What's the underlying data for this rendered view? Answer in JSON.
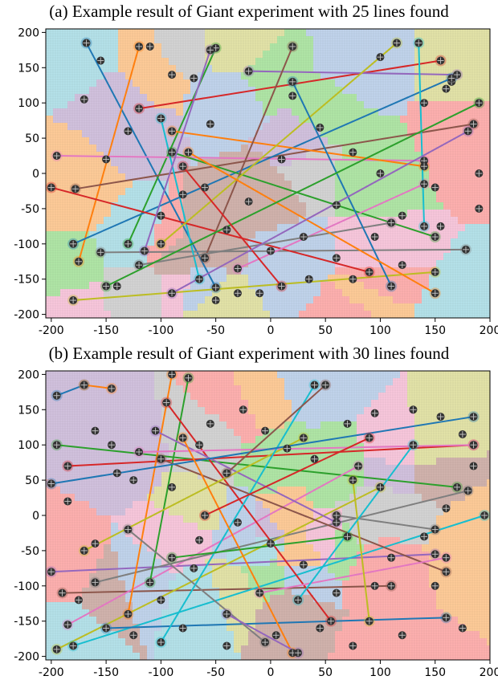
{
  "figure": {
    "panels": [
      {
        "title": "(a) Example result of Giant experiment with 25 lines found"
      },
      {
        "title": "(b) Example result of Giant experiment with 30 lines found"
      }
    ]
  },
  "colors": {
    "lines": [
      "#1f77b4",
      "#ff7f0e",
      "#2ca02c",
      "#d62728",
      "#9467bd",
      "#8c564b",
      "#e377c2",
      "#7f7f7f",
      "#bcbd22",
      "#17becf"
    ],
    "regions": [
      "#aec7e8",
      "#ffbb78",
      "#98df8a",
      "#ff9896",
      "#c5b0d5",
      "#c49c94",
      "#f7b6d2",
      "#c7c7c7",
      "#dbdb8d",
      "#9edae5"
    ],
    "point": "#333333"
  },
  "chart_data": [
    {
      "type": "scatter",
      "title": "(a) Example result of Giant experiment with 25 lines found",
      "xlim": [
        -205,
        200
      ],
      "ylim": [
        -205,
        205
      ],
      "xticks": [
        -200,
        -150,
        -100,
        -50,
        0,
        50,
        100,
        150,
        200
      ],
      "yticks": [
        200,
        150,
        100,
        50,
        0,
        -50,
        -100,
        -150,
        -200
      ],
      "grid": true,
      "lines": [
        [
          [
            -168,
            185
          ],
          [
            -50,
            -162
          ]
        ],
        [
          [
            -120,
            180
          ],
          [
            -175,
            -125
          ]
        ],
        [
          [
            -50,
            178
          ],
          [
            -130,
            -100
          ]
        ],
        [
          [
            -120,
            92
          ],
          [
            155,
            160
          ]
        ],
        [
          [
            -20,
            145
          ],
          [
            170,
            140
          ]
        ],
        [
          [
            -178,
            -22
          ],
          [
            185,
            70
          ]
        ],
        [
          [
            -195,
            25
          ],
          [
            140,
            18
          ]
        ],
        [
          [
            -155,
            -112
          ],
          [
            178,
            -108
          ]
        ],
        [
          [
            -180,
            -180
          ],
          [
            150,
            -140
          ]
        ],
        [
          [
            -100,
            78
          ],
          [
            -65,
            -150
          ]
        ],
        [
          [
            -180,
            -100
          ],
          [
            165,
            135
          ]
        ],
        [
          [
            -90,
            60
          ],
          [
            140,
            10
          ]
        ],
        [
          [
            -90,
            30
          ],
          [
            150,
            -90
          ]
        ],
        [
          [
            -200,
            -20
          ],
          [
            90,
            -140
          ]
        ],
        [
          [
            -115,
            -110
          ],
          [
            -55,
            175
          ]
        ],
        [
          [
            -60,
            -120
          ],
          [
            20,
            180
          ]
        ],
        [
          [
            -30,
            -135
          ],
          [
            140,
            -15
          ]
        ],
        [
          [
            -120,
            -130
          ],
          [
            110,
            -70
          ]
        ],
        [
          [
            115,
            185
          ],
          [
            -100,
            -100
          ]
        ],
        [
          [
            135,
            185
          ],
          [
            140,
            -75
          ]
        ],
        [
          [
            20,
            130
          ],
          [
            110,
            -160
          ]
        ],
        [
          [
            -75,
            30
          ],
          [
            150,
            -170
          ]
        ],
        [
          [
            -150,
            -160
          ],
          [
            190,
            100
          ]
        ],
        [
          [
            10,
            -160
          ],
          [
            -80,
            10
          ]
        ],
        [
          [
            -90,
            -170
          ],
          [
            180,
            60
          ]
        ]
      ],
      "points": [
        [
          -110,
          180
        ],
        [
          -155,
          160
        ],
        [
          -90,
          140
        ],
        [
          -70,
          135
        ],
        [
          -55,
          70
        ],
        [
          -50,
          -180
        ],
        [
          -30,
          -170
        ],
        [
          35,
          -150
        ],
        [
          60,
          -120
        ],
        [
          75,
          -150
        ],
        [
          100,
          165
        ],
        [
          140,
          100
        ],
        [
          160,
          120
        ],
        [
          165,
          130
        ],
        [
          190,
          0
        ],
        [
          190,
          -50
        ],
        [
          150,
          -20
        ],
        [
          120,
          -60
        ],
        [
          95,
          -90
        ],
        [
          60,
          -45
        ],
        [
          30,
          -90
        ],
        [
          0,
          -110
        ],
        [
          -40,
          -80
        ],
        [
          -60,
          -20
        ],
        [
          -150,
          20
        ],
        [
          -170,
          105
        ],
        [
          -140,
          -160
        ],
        [
          -20,
          -40
        ],
        [
          10,
          20
        ],
        [
          45,
          65
        ],
        [
          75,
          30
        ],
        [
          100,
          0
        ],
        [
          -80,
          -30
        ],
        [
          -100,
          -60
        ],
        [
          20,
          110
        ],
        [
          -130,
          60
        ],
        [
          120,
          -130
        ],
        [
          155,
          -75
        ],
        [
          -10,
          -170
        ]
      ]
    },
    {
      "type": "scatter",
      "title": "(b) Example result of Giant experiment with 30 lines found",
      "xlim": [
        -205,
        200
      ],
      "ylim": [
        -205,
        205
      ],
      "xticks": [
        -200,
        -150,
        -100,
        -50,
        0,
        50,
        100,
        150,
        200
      ],
      "yticks": [
        200,
        150,
        100,
        50,
        0,
        -50,
        -100,
        -150,
        -200
      ],
      "grid": true,
      "lines": [
        [
          [
            -195,
            170
          ],
          [
            -170,
            185
          ]
        ],
        [
          [
            -170,
            185
          ],
          [
            -145,
            180
          ]
        ],
        [
          [
            -195,
            100
          ],
          [
            170,
            40
          ]
        ],
        [
          [
            -185,
            70
          ],
          [
            185,
            100
          ]
        ],
        [
          [
            -200,
            -80
          ],
          [
            150,
            -55
          ]
        ],
        [
          [
            -190,
            -110
          ],
          [
            110,
            -100
          ]
        ],
        [
          [
            -185,
            -155
          ],
          [
            80,
            70
          ]
        ],
        [
          [
            -160,
            -95
          ],
          [
            180,
            35
          ]
        ],
        [
          [
            -195,
            -190
          ],
          [
            100,
            40
          ]
        ],
        [
          [
            -180,
            -185
          ],
          [
            195,
            0
          ]
        ],
        [
          [
            -150,
            -160
          ],
          [
            160,
            -145
          ]
        ],
        [
          [
            -130,
            -140
          ],
          [
            -90,
            200
          ]
        ],
        [
          [
            -110,
            -95
          ],
          [
            -75,
            195
          ]
        ],
        [
          [
            -95,
            160
          ],
          [
            55,
            -150
          ]
        ],
        [
          [
            -105,
            120
          ],
          [
            60,
            -10
          ]
        ],
        [
          [
            -100,
            80
          ],
          [
            160,
            -80
          ]
        ],
        [
          [
            -120,
            90
          ],
          [
            185,
            100
          ]
        ],
        [
          [
            -130,
            -20
          ],
          [
            -5,
            -180
          ]
        ],
        [
          [
            -170,
            -50
          ],
          [
            30,
            110
          ]
        ],
        [
          [
            -100,
            -180
          ],
          [
            40,
            185
          ]
        ],
        [
          [
            -200,
            45
          ],
          [
            185,
            140
          ]
        ],
        [
          [
            -80,
            110
          ],
          [
            20,
            -195
          ]
        ],
        [
          [
            -90,
            -60
          ],
          [
            70,
            -30
          ]
        ],
        [
          [
            -60,
            0
          ],
          [
            90,
            110
          ]
        ],
        [
          [
            -40,
            -140
          ],
          [
            25,
            -195
          ]
        ],
        [
          [
            -40,
            60
          ],
          [
            50,
            185
          ]
        ],
        [
          [
            -10,
            -110
          ],
          [
            160,
            -60
          ]
        ],
        [
          [
            60,
            0
          ],
          [
            150,
            -20
          ]
        ],
        [
          [
            90,
            -150
          ],
          [
            75,
            50
          ]
        ],
        [
          [
            25,
            -120
          ],
          [
            130,
            100
          ]
        ]
      ],
      "points": [
        [
          -160,
          120
        ],
        [
          -145,
          100
        ],
        [
          -140,
          60
        ],
        [
          -125,
          50
        ],
        [
          -90,
          40
        ],
        [
          -65,
          100
        ],
        [
          -55,
          130
        ],
        [
          -25,
          150
        ],
        [
          -5,
          120
        ],
        [
          15,
          95
        ],
        [
          40,
          80
        ],
        [
          70,
          130
        ],
        [
          95,
          145
        ],
        [
          130,
          150
        ],
        [
          155,
          140
        ],
        [
          175,
          115
        ],
        [
          185,
          70
        ],
        [
          160,
          10
        ],
        [
          140,
          -30
        ],
        [
          110,
          -60
        ],
        [
          95,
          -100
        ],
        [
          60,
          -110
        ],
        [
          30,
          -70
        ],
        [
          0,
          -40
        ],
        [
          -30,
          -10
        ],
        [
          -65,
          -35
        ],
        [
          -70,
          -75
        ],
        [
          -100,
          -120
        ],
        [
          -160,
          -40
        ],
        [
          -185,
          20
        ],
        [
          -175,
          -120
        ],
        [
          -125,
          -170
        ],
        [
          -80,
          -160
        ],
        [
          -40,
          -185
        ],
        [
          5,
          -170
        ],
        [
          45,
          -160
        ],
        [
          75,
          -185
        ],
        [
          120,
          -170
        ],
        [
          150,
          -100
        ],
        [
          175,
          -160
        ]
      ]
    }
  ]
}
